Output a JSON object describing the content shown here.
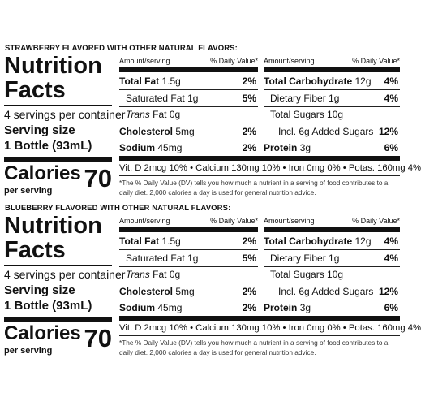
{
  "panels": [
    {
      "heading": "STRAWBERRY FLAVORED WITH OTHER NATURAL FLAVORS:",
      "title_line1": "Nutrition",
      "title_line2": "Facts",
      "servings": "4 servings per container",
      "serving_size_label": "Serving size",
      "serving_size": "1 Bottle (93mL)",
      "calories_label": "Calories",
      "per_serving": "per serving",
      "calories": "70",
      "col_header": [
        "Amount/serving",
        "% Daily Value*"
      ],
      "left_rows": [
        {
          "name": "Total Fat",
          "amount": "1.5g",
          "dv": "2%",
          "level": 0
        },
        {
          "name": "Saturated Fat",
          "amount": "1g",
          "dv": "5%",
          "level": 1
        },
        {
          "name": "Trans",
          "amount": "Fat 0g",
          "level": 1,
          "italic": true
        },
        {
          "name": "Cholesterol",
          "amount": "5mg",
          "dv": "2%",
          "level": 0
        },
        {
          "name": "Sodium",
          "amount": "45mg",
          "dv": "2%",
          "level": 0
        }
      ],
      "right_rows": [
        {
          "name": "Total Carbohydrate",
          "amount": "12g",
          "dv": "4%",
          "level": 0
        },
        {
          "name": "Dietary Fiber",
          "amount": "1g",
          "dv": "4%",
          "level": 1
        },
        {
          "name": "Total Sugars",
          "amount": "10g",
          "level": 1
        },
        {
          "name": "Incl. 6g Added Sugars",
          "dv": "12%",
          "level": 2
        },
        {
          "name": "Protein",
          "amount": "3g",
          "dv": "6%",
          "level": 0
        }
      ],
      "vitamins": "Vit. D 2mcg 10% • Calcium 130mg 10% • Iron 0mg 0% • Potas. 160mg 4%",
      "footnote": "*The % Daily Value (DV) tells you how much a nutrient in a serving of food contributes to a daily diet. 2,000 calories a day is used for general nutrition advice."
    },
    {
      "heading": "BLUEBERRY FLAVORED WITH OTHER NATURAL FLAVORS:",
      "title_line1": "Nutrition",
      "title_line2": "Facts",
      "servings": "4 servings per container",
      "serving_size_label": "Serving size",
      "serving_size": "1 Bottle (93mL)",
      "calories_label": "Calories",
      "per_serving": "per serving",
      "calories": "70",
      "col_header": [
        "Amount/serving",
        "% Daily Value*"
      ],
      "left_rows": [
        {
          "name": "Total Fat",
          "amount": "1.5g",
          "dv": "2%",
          "level": 0
        },
        {
          "name": "Saturated Fat",
          "amount": "1g",
          "dv": "5%",
          "level": 1
        },
        {
          "name": "Trans",
          "amount": "Fat 0g",
          "level": 1,
          "italic": true
        },
        {
          "name": "Cholesterol",
          "amount": "5mg",
          "dv": "2%",
          "level": 0
        },
        {
          "name": "Sodium",
          "amount": "45mg",
          "dv": "2%",
          "level": 0
        }
      ],
      "right_rows": [
        {
          "name": "Total Carbohydrate",
          "amount": "12g",
          "dv": "4%",
          "level": 0
        },
        {
          "name": "Dietary Fiber",
          "amount": "1g",
          "dv": "4%",
          "level": 1
        },
        {
          "name": "Total Sugars",
          "amount": "10g",
          "level": 1
        },
        {
          "name": "Incl. 6g Added Sugars",
          "dv": "12%",
          "level": 2
        },
        {
          "name": "Protein",
          "amount": "3g",
          "dv": "6%",
          "level": 0
        }
      ],
      "vitamins": "Vit. D 2mcg 10% • Calcium 130mg 10% • Iron 0mg 0% • Potas. 160mg 4%",
      "footnote": "*The % Daily Value (DV) tells you how much a nutrient in a serving of food contributes to a daily diet. 2,000 calories a day is used for general nutrition advice."
    }
  ]
}
